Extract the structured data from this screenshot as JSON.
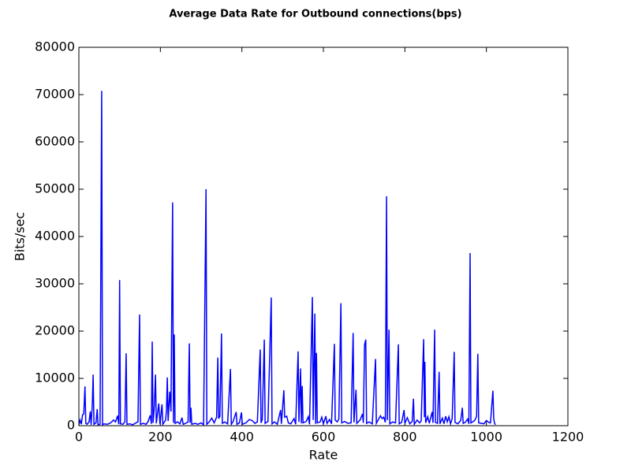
{
  "chart_data": {
    "type": "line",
    "title": "Average Data Rate for Outbound connections(bps)",
    "x_label": "Rate",
    "y_label": "Bits/sec",
    "xlim": [
      0,
      1200
    ],
    "xticks": [
      0,
      200,
      400,
      600,
      800,
      1000,
      1200
    ],
    "ylim": [
      0,
      80000
    ],
    "yticks": [
      0,
      10000,
      20000,
      30000,
      40000,
      50000,
      60000,
      70000,
      80000
    ],
    "grid": false,
    "color": "#0000ff",
    "x": [
      0,
      3,
      6,
      9,
      12,
      15,
      17,
      20,
      25,
      28,
      30,
      33,
      35,
      37,
      42,
      45,
      47,
      52,
      56,
      58,
      62,
      70,
      78,
      85,
      90,
      95,
      98,
      100,
      102,
      108,
      113,
      116,
      118,
      125,
      132,
      140,
      145,
      149,
      151,
      158,
      165,
      170,
      175,
      178,
      180,
      182,
      185,
      188,
      190,
      196,
      199,
      204,
      206,
      213,
      215,
      217,
      219,
      223,
      226,
      230,
      232,
      234,
      236,
      242,
      248,
      253,
      256,
      262,
      268,
      271,
      273,
      275,
      277,
      285,
      292,
      300,
      306,
      312,
      314,
      320,
      326,
      332,
      338,
      341,
      343,
      346,
      350,
      352,
      358,
      365,
      372,
      374,
      378,
      386,
      388,
      394,
      399,
      401,
      410,
      418,
      425,
      432,
      438,
      445,
      447,
      450,
      455,
      457,
      464,
      472,
      474,
      480,
      487,
      495,
      497,
      503,
      505,
      510,
      514,
      520,
      528,
      532,
      538,
      540,
      544,
      546,
      548,
      550,
      558,
      563,
      566,
      573,
      575,
      579,
      581,
      583,
      585,
      592,
      596,
      600,
      606,
      609,
      615,
      620,
      627,
      629,
      634,
      638,
      643,
      645,
      652,
      660,
      668,
      673,
      675,
      680,
      682,
      690,
      696,
      698,
      701,
      704,
      706,
      712,
      720,
      728,
      730,
      735,
      740,
      744,
      748,
      752,
      755,
      757,
      761,
      763,
      770,
      777,
      784,
      786,
      792,
      798,
      800,
      806,
      812,
      818,
      821,
      823,
      830,
      836,
      840,
      846,
      848,
      849,
      851,
      856,
      860,
      867,
      869,
      873,
      875,
      880,
      884,
      886,
      892,
      896,
      900,
      904,
      908,
      912,
      916,
      921,
      923,
      930,
      937,
      941,
      943,
      948,
      954,
      957,
      960,
      962,
      968,
      972,
      976,
      979,
      981,
      988,
      994,
      1000,
      1006,
      1010,
      1016,
      1018,
      1020,
      1022
    ],
    "values": [
      200,
      1200,
      300,
      2300,
      2500,
      8300,
      500,
      300,
      800,
      3000,
      200,
      4500,
      10800,
      300,
      600,
      3500,
      200,
      300,
      70800,
      200,
      400,
      300,
      600,
      1200,
      800,
      2100,
      300,
      30800,
      400,
      300,
      800,
      15300,
      300,
      400,
      200,
      600,
      800,
      23500,
      300,
      500,
      300,
      900,
      2200,
      400,
      17800,
      600,
      3800,
      10800,
      500,
      4700,
      300,
      4500,
      300,
      1200,
      3400,
      10200,
      1000,
      7200,
      3000,
      47200,
      600,
      19300,
      500,
      800,
      400,
      1700,
      300,
      500,
      800,
      17400,
      600,
      3800,
      300,
      500,
      300,
      600,
      200,
      50000,
      300,
      800,
      1600,
      600,
      1800,
      14400,
      1500,
      2000,
      19500,
      500,
      800,
      400,
      12000,
      300,
      800,
      2900,
      300,
      600,
      2800,
      300,
      600,
      1300,
      1100,
      500,
      800,
      16100,
      600,
      1300,
      18200,
      500,
      900,
      27100,
      400,
      800,
      300,
      3300,
      400,
      7500,
      1800,
      2000,
      600,
      400,
      1500,
      300,
      15700,
      800,
      12100,
      500,
      8400,
      600,
      900,
      1900,
      300,
      27200,
      1200,
      23700,
      400,
      15400,
      600,
      800,
      1800,
      400,
      2000,
      500,
      1300,
      400,
      17300,
      1200,
      800,
      1400,
      25900,
      600,
      900,
      500,
      600,
      19600,
      700,
      7600,
      500,
      1200,
      2500,
      600,
      17100,
      18200,
      500,
      800,
      400,
      14100,
      500,
      1300,
      2100,
      1500,
      1800,
      700,
      48500,
      1200,
      20300,
      400,
      800,
      600,
      17200,
      400,
      700,
      3300,
      500,
      1700,
      400,
      900,
      5700,
      300,
      1200,
      600,
      1000,
      18300,
      1800,
      13500,
      600,
      1900,
      500,
      2900,
      600,
      20300,
      700,
      500,
      11400,
      400,
      1600,
      400,
      2000,
      800,
      1900,
      400,
      1500,
      15600,
      700,
      400,
      1100,
      3800,
      500,
      700,
      1400,
      400,
      36500,
      600,
      900,
      1200,
      2000,
      15200,
      600,
      500,
      400,
      1100,
      700,
      600,
      7400,
      1500,
      500,
      200
    ]
  }
}
